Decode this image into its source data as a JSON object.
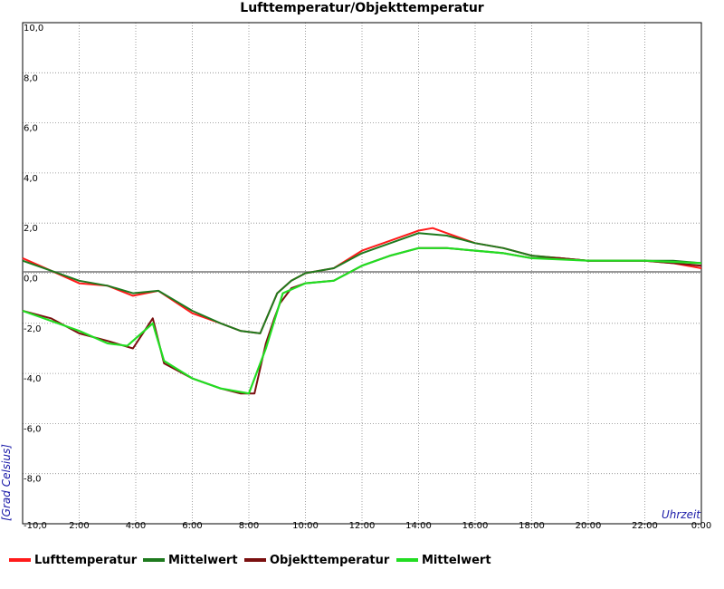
{
  "chart_data": {
    "type": "line",
    "title": "Lufttemperatur/Objekttemperatur",
    "ylabel": "[Grad Celsius]",
    "xlabel": "Uhrzeit",
    "x_ticks": [
      "2:00",
      "4:00",
      "6:00",
      "8:00",
      "10:00",
      "12:00",
      "14:00",
      "16:00",
      "18:00",
      "20:00",
      "22:00",
      "0:00"
    ],
    "y_ticks": [
      "10,0",
      "8,0",
      "6,0",
      "4,0",
      "2,0",
      "0,0",
      "-2,0",
      "-4,0",
      "-6,0",
      "-8,0",
      "-10,0"
    ],
    "xlim": [
      0,
      24
    ],
    "ylim": [
      -10,
      10
    ],
    "grid": true,
    "legend_position": "bottom",
    "series": [
      {
        "name": "Lufttemperatur",
        "color": "#ff1a1a",
        "x": [
          0,
          1,
          2,
          3,
          3.9,
          4.8,
          6,
          7,
          7.7,
          8.4,
          9,
          9.5,
          10,
          11,
          12,
          13,
          14,
          14.5,
          15,
          16,
          17,
          18,
          19,
          20,
          21,
          22,
          23,
          24
        ],
        "y": [
          0.6,
          0.1,
          -0.4,
          -0.5,
          -0.9,
          -0.7,
          -1.6,
          -2.0,
          -2.3,
          -2.4,
          -0.8,
          -0.3,
          0.0,
          0.2,
          0.9,
          1.3,
          1.7,
          1.8,
          1.6,
          1.2,
          1.0,
          0.7,
          0.6,
          0.5,
          0.5,
          0.5,
          0.4,
          0.2
        ]
      },
      {
        "name": "Mittelwert",
        "color": "#1e7a1e",
        "x": [
          0,
          1,
          2,
          3,
          3.9,
          4.8,
          6,
          7,
          7.7,
          8.4,
          9,
          9.5,
          10,
          11,
          12,
          13,
          14,
          15,
          16,
          17,
          18,
          19,
          20,
          21,
          22,
          23,
          24
        ],
        "y": [
          0.5,
          0.1,
          -0.3,
          -0.5,
          -0.8,
          -0.7,
          -1.5,
          -2.0,
          -2.3,
          -2.4,
          -0.8,
          -0.3,
          0.0,
          0.2,
          0.8,
          1.2,
          1.6,
          1.5,
          1.2,
          1.0,
          0.7,
          0.6,
          0.5,
          0.5,
          0.5,
          0.5,
          0.4
        ]
      },
      {
        "name": "Objekttemperatur",
        "color": "#7a0f0f",
        "x": [
          0,
          1,
          2,
          3,
          3.9,
          4.6,
          5,
          6,
          7,
          7.7,
          8.2,
          8.6,
          8.9,
          9.1,
          9.5,
          10,
          11,
          12,
          13,
          14,
          15,
          16,
          17,
          18,
          19,
          20,
          21,
          22,
          23,
          24
        ],
        "y": [
          -1.5,
          -1.8,
          -2.4,
          -2.7,
          -3.0,
          -1.8,
          -3.6,
          -4.2,
          -4.6,
          -4.8,
          -4.8,
          -2.8,
          -1.8,
          -1.2,
          -0.6,
          -0.4,
          -0.3,
          0.3,
          0.7,
          1.0,
          1.0,
          0.9,
          0.8,
          0.6,
          0.6,
          0.5,
          0.5,
          0.5,
          0.4,
          0.3
        ]
      },
      {
        "name": "Mittelwert",
        "color": "#22dd22",
        "x": [
          0,
          2,
          3,
          3.7,
          4.6,
          5,
          6,
          7,
          8,
          8.6,
          9.2,
          10,
          11,
          12,
          13,
          14,
          15,
          16,
          17,
          18,
          20,
          22,
          24
        ],
        "y": [
          -1.5,
          -2.3,
          -2.8,
          -2.9,
          -2.0,
          -3.5,
          -4.2,
          -4.6,
          -4.8,
          -3.0,
          -0.8,
          -0.4,
          -0.3,
          0.3,
          0.7,
          1.0,
          1.0,
          0.9,
          0.8,
          0.6,
          0.5,
          0.5,
          0.4
        ]
      }
    ]
  }
}
